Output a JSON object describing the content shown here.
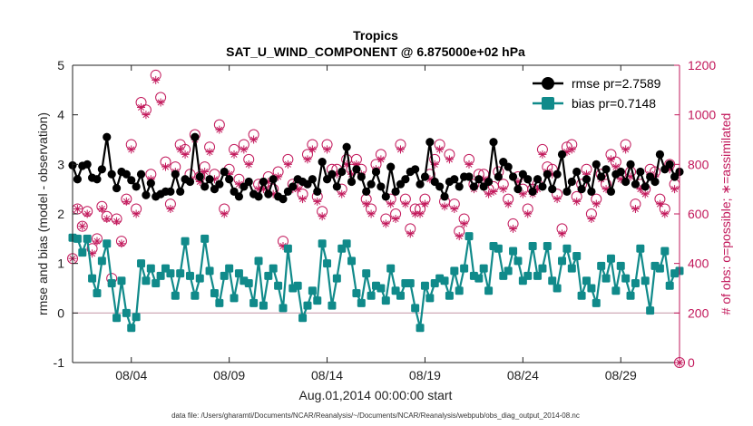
{
  "chart_data": {
    "type": "line",
    "title": "Tropics",
    "subtitle": "SAT_U_WIND_COMPONENT @ 6.875000e+02 hPa",
    "xlabel": "Aug.01,2014 00:00:00 start",
    "ylabel": "rmse and bias (model - observation)",
    "ylabel_right": "# of obs: o=possible; ∗=assimilated",
    "footnote": "data file: /Users/gharamti/Documents/NCAR/Reanalysis/~/Documents/NCAR/Reanalysis/webpub/obs_diag_output_2014-08.nc",
    "xlim": [
      1.0,
      32.0
    ],
    "ylim": [
      -1,
      5
    ],
    "ylim_right": [
      0,
      1200
    ],
    "x_tick_labels": [
      "08/04",
      "08/09",
      "08/14",
      "08/19",
      "08/24",
      "08/29"
    ],
    "x_tick_values": [
      4,
      9,
      14,
      19,
      24,
      29
    ],
    "y_ticks": [
      "-1",
      "0",
      "1",
      "2",
      "3",
      "4",
      "5"
    ],
    "y_ticks_right": [
      "0",
      "200",
      "400",
      "600",
      "800",
      "1000",
      "1200"
    ],
    "zero_line": 0,
    "legend_position": "top-right",
    "x": [
      1.0,
      1.25,
      1.5,
      1.75,
      2.0,
      2.25,
      2.5,
      2.75,
      3.0,
      3.25,
      3.5,
      3.75,
      4.0,
      4.25,
      4.5,
      4.75,
      5.0,
      5.25,
      5.5,
      5.75,
      6.0,
      6.25,
      6.5,
      6.75,
      7.0,
      7.25,
      7.5,
      7.75,
      8.0,
      8.25,
      8.5,
      8.75,
      9.0,
      9.25,
      9.5,
      9.75,
      10.0,
      10.25,
      10.5,
      10.75,
      11.0,
      11.25,
      11.5,
      11.75,
      12.0,
      12.25,
      12.5,
      12.75,
      13.0,
      13.25,
      13.5,
      13.75,
      14.0,
      14.25,
      14.5,
      14.75,
      15.0,
      15.25,
      15.5,
      15.75,
      16.0,
      16.25,
      16.5,
      16.75,
      17.0,
      17.25,
      17.5,
      17.75,
      18.0,
      18.25,
      18.5,
      18.75,
      19.0,
      19.25,
      19.5,
      19.75,
      20.0,
      20.25,
      20.5,
      20.75,
      21.0,
      21.25,
      21.5,
      21.75,
      22.0,
      22.25,
      22.5,
      22.75,
      23.0,
      23.25,
      23.5,
      23.75,
      24.0,
      24.25,
      24.5,
      24.75,
      25.0,
      25.25,
      25.5,
      25.75,
      26.0,
      26.25,
      26.5,
      26.75,
      27.0,
      27.25,
      27.5,
      27.75,
      28.0,
      28.25,
      28.5,
      28.75,
      29.0,
      29.25,
      29.5,
      29.75,
      30.0,
      30.25,
      30.5,
      30.75,
      31.0,
      31.25,
      31.5,
      31.75,
      32.0
    ],
    "series": [
      {
        "name": "rmse pr=2.7589",
        "color": "#000000",
        "marker": "circle",
        "axis": "left",
        "values": [
          2.98,
          2.7,
          2.97,
          3.0,
          2.73,
          2.7,
          2.9,
          3.55,
          2.8,
          2.52,
          2.85,
          2.8,
          2.68,
          2.55,
          2.8,
          2.38,
          2.62,
          2.35,
          2.4,
          2.45,
          2.45,
          2.8,
          2.45,
          2.7,
          2.65,
          3.55,
          2.75,
          2.55,
          2.7,
          2.5,
          2.6,
          2.85,
          2.7,
          2.45,
          2.35,
          2.55,
          2.65,
          2.4,
          2.35,
          2.65,
          2.4,
          2.7,
          2.35,
          2.3,
          2.45,
          2.55,
          2.7,
          2.65,
          2.6,
          2.7,
          2.45,
          3.05,
          2.7,
          2.8,
          2.55,
          2.85,
          3.35,
          2.65,
          2.9,
          2.75,
          2.45,
          2.6,
          2.85,
          2.55,
          2.35,
          2.95,
          2.45,
          2.6,
          2.7,
          2.85,
          2.9,
          2.6,
          2.75,
          3.45,
          2.65,
          2.55,
          2.35,
          2.65,
          2.7,
          2.55,
          2.75,
          2.75,
          2.55,
          2.7,
          2.55,
          2.65,
          3.45,
          2.75,
          3.05,
          2.95,
          2.75,
          2.5,
          2.8,
          2.7,
          2.45,
          2.7,
          2.55,
          2.8,
          2.5,
          2.8,
          3.2,
          2.45,
          2.65,
          2.85,
          2.5,
          2.7,
          2.45,
          3.0,
          2.75,
          2.9,
          2.45,
          2.8,
          2.85,
          2.65,
          3.0,
          2.6,
          2.85,
          2.55,
          2.75,
          2.65,
          3.2,
          2.9,
          3.0,
          2.75,
          2.85
        ]
      },
      {
        "name": "bias pr=0.7148",
        "color": "#108a8a",
        "marker": "square",
        "axis": "left",
        "values": [
          1.52,
          1.5,
          1.22,
          1.5,
          0.7,
          0.4,
          1.05,
          1.4,
          0.6,
          -0.1,
          0.65,
          0.0,
          -0.3,
          -0.08,
          1.0,
          0.65,
          0.9,
          0.6,
          0.75,
          0.9,
          0.8,
          0.35,
          0.8,
          1.45,
          0.75,
          0.35,
          0.7,
          1.5,
          0.85,
          0.4,
          0.2,
          0.75,
          0.9,
          0.3,
          0.8,
          0.65,
          0.6,
          0.2,
          1.05,
          0.15,
          0.75,
          0.9,
          0.55,
          0.1,
          1.3,
          0.5,
          0.55,
          -0.1,
          0.15,
          0.45,
          0.25,
          1.4,
          1.0,
          0.15,
          0.7,
          1.3,
          1.4,
          1.05,
          0.4,
          0.2,
          0.8,
          0.35,
          0.55,
          0.5,
          0.25,
          0.9,
          0.45,
          0.35,
          0.6,
          0.6,
          0.1,
          -0.3,
          0.55,
          0.3,
          0.6,
          0.7,
          0.65,
          0.35,
          0.85,
          0.45,
          0.9,
          1.55,
          0.75,
          0.7,
          0.9,
          0.45,
          1.35,
          1.3,
          0.75,
          0.85,
          1.25,
          1.05,
          0.65,
          0.75,
          1.35,
          0.75,
          0.9,
          1.35,
          0.65,
          0.5,
          1.05,
          1.3,
          0.9,
          1.15,
          0.35,
          0.65,
          0.5,
          0.2,
          0.95,
          0.7,
          1.1,
          0.45,
          0.95,
          0.7,
          0.35,
          0.6,
          1.3,
          0.65,
          0.05,
          0.95,
          0.9,
          1.25,
          0.55,
          0.8,
          0.85
        ]
      }
    ],
    "obs_possible": {
      "name": "# obs possible",
      "marker": "circle",
      "axis": "right",
      "color": "#c2185b",
      "values": [
        420,
        620,
        550,
        610,
        460,
        500,
        630,
        590,
        340,
        580,
        490,
        660,
        880,
        620,
        1050,
        1020,
        760,
        1160,
        1070,
        810,
        640,
        790,
        880,
        860,
        760,
        920,
        750,
        790,
        870,
        760,
        960,
        620,
        780,
        860,
        740,
        880,
        820,
        920,
        720,
        720,
        750,
        700,
        770,
        490,
        820,
        720,
        720,
        680,
        840,
        880,
        670,
        610,
        880,
        780,
        780,
        700,
        820,
        780,
        820,
        780,
        660,
        620,
        800,
        840,
        580,
        660,
        600,
        880,
        660,
        540,
        620,
        620,
        660,
        760,
        820,
        880,
        650,
        840,
        640,
        530,
        580,
        820,
        720,
        760,
        760,
        700,
        710,
        770,
        720,
        660,
        560,
        750,
        700,
        620,
        700,
        720,
        860,
        790,
        780,
        680,
        540,
        870,
        880,
        670,
        720,
        780,
        600,
        660,
        760,
        720,
        840,
        810,
        760,
        880,
        770,
        640,
        720,
        700,
        780,
        770,
        660,
        620,
        800,
        720,
        0
      ]
    },
    "obs_assimilated": {
      "name": "# obs assimilated",
      "marker": "asterisk",
      "axis": "right",
      "color": "#c2185b",
      "values": [
        420,
        620,
        550,
        600,
        440,
        490,
        620,
        580,
        320,
        570,
        480,
        650,
        860,
        600,
        1030,
        1000,
        740,
        1140,
        1050,
        790,
        620,
        770,
        860,
        840,
        740,
        900,
        730,
        770,
        850,
        740,
        940,
        600,
        760,
        840,
        720,
        860,
        800,
        900,
        700,
        700,
        730,
        680,
        750,
        470,
        800,
        700,
        700,
        660,
        820,
        860,
        650,
        590,
        860,
        760,
        760,
        680,
        800,
        760,
        800,
        760,
        640,
        600,
        780,
        820,
        560,
        640,
        580,
        860,
        640,
        520,
        600,
        600,
        640,
        740,
        800,
        860,
        630,
        820,
        620,
        510,
        560,
        800,
        700,
        740,
        740,
        680,
        690,
        750,
        700,
        640,
        540,
        730,
        680,
        600,
        680,
        700,
        840,
        770,
        760,
        660,
        520,
        850,
        860,
        650,
        700,
        760,
        580,
        640,
        740,
        700,
        820,
        790,
        740,
        860,
        750,
        620,
        700,
        680,
        760,
        750,
        640,
        600,
        780,
        700,
        0
      ]
    }
  }
}
